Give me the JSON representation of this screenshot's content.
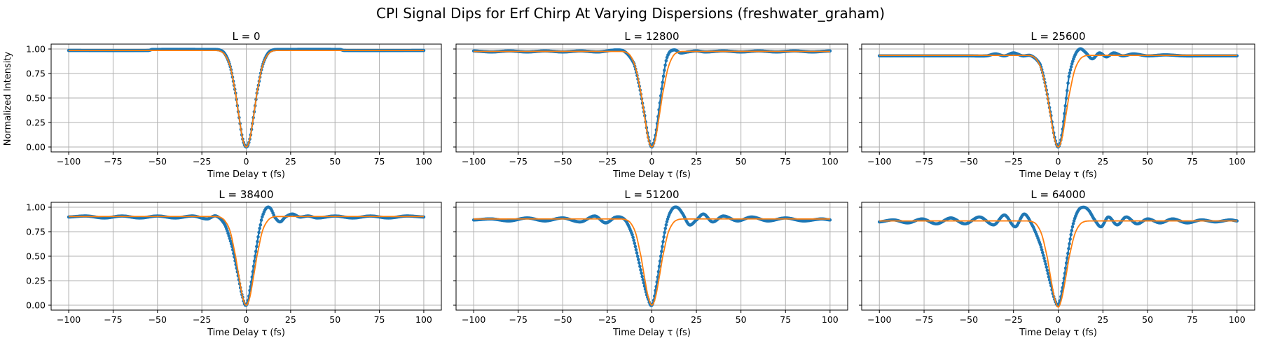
{
  "figure": {
    "title": "CPI Signal Dips for Erf Chirp At Varying Dispersions (freshwater_graham)",
    "xlabel": "Time Delay τ (fs)",
    "ylabel": "Normalized Intensity",
    "colors": {
      "data": "#1f77b4",
      "fit": "#ff7f0e"
    }
  },
  "chart_data": [
    {
      "type": "line",
      "title": "L = 0",
      "xlabel": "Time Delay τ (fs)",
      "ylabel": "Normalized Intensity",
      "xlim": [
        -100,
        100
      ],
      "ylim": [
        -0.05,
        1.05
      ],
      "xticks": [
        -100,
        -75,
        -50,
        -25,
        0,
        25,
        50,
        75,
        100
      ],
      "yticks": [
        "0.00",
        "0.25",
        "0.50",
        "0.75",
        "1.00"
      ],
      "grid": true,
      "series": [
        {
          "x": [
            -100,
            -55,
            -53,
            -20,
            -15,
            -12,
            -9,
            -6,
            -4,
            -2,
            0,
            2,
            4,
            6,
            9,
            12,
            15,
            20,
            53,
            55,
            100
          ],
          "y": [
            0.985,
            0.985,
            0.995,
            0.995,
            0.99,
            0.95,
            0.82,
            0.55,
            0.3,
            0.08,
            0.0,
            0.08,
            0.3,
            0.55,
            0.82,
            0.95,
            0.99,
            0.995,
            0.995,
            0.985,
            0.985
          ]
        },
        {
          "x": [
            -100,
            -20,
            -15,
            -12,
            -9,
            -6,
            -4,
            -2,
            0,
            2,
            4,
            6,
            9,
            12,
            15,
            20,
            100
          ],
          "y": [
            0.985,
            0.985,
            0.98,
            0.94,
            0.82,
            0.55,
            0.3,
            0.08,
            0.0,
            0.08,
            0.3,
            0.55,
            0.82,
            0.94,
            0.98,
            0.985,
            0.985
          ]
        }
      ]
    },
    {
      "type": "line",
      "title": "L = 12800",
      "xlabel": "Time Delay τ (fs)",
      "xlim": [
        -100,
        100
      ],
      "ylim": [
        -0.05,
        1.05
      ],
      "xticks": [
        -100,
        -75,
        -50,
        -25,
        0,
        25,
        50,
        75,
        100
      ],
      "yticks": [
        "0.00",
        "0.25",
        "0.50",
        "0.75",
        "1.00"
      ],
      "grid": true,
      "series": [
        {
          "x": [
            -100,
            -90,
            -80,
            -70,
            -60,
            -50,
            -40,
            -30,
            -20,
            -15,
            -10,
            -7,
            -4,
            -2,
            0,
            2,
            4,
            6,
            8,
            10,
            13,
            16,
            20,
            25,
            30,
            40,
            50,
            60,
            70,
            80,
            90,
            100
          ],
          "y": [
            0.98,
            0.97,
            0.98,
            0.97,
            0.98,
            0.97,
            0.98,
            0.97,
            0.99,
            0.97,
            0.85,
            0.62,
            0.32,
            0.1,
            0.0,
            0.12,
            0.38,
            0.66,
            0.88,
            0.97,
            0.99,
            0.96,
            0.97,
            0.98,
            0.97,
            0.98,
            0.97,
            0.98,
            0.97,
            0.98,
            0.97,
            0.98
          ]
        },
        {
          "x": [
            -100,
            -20,
            -15,
            -12,
            -9,
            -6,
            -4,
            -2,
            0,
            2,
            4,
            6,
            9,
            12,
            15,
            20,
            100
          ],
          "y": [
            0.975,
            0.975,
            0.97,
            0.93,
            0.8,
            0.54,
            0.3,
            0.08,
            0.0,
            0.08,
            0.3,
            0.54,
            0.8,
            0.93,
            0.97,
            0.975,
            0.975
          ]
        }
      ]
    },
    {
      "type": "line",
      "title": "L = 25600",
      "xlabel": "Time Delay τ (fs)",
      "xlim": [
        -100,
        100
      ],
      "ylim": [
        -0.05,
        1.05
      ],
      "xticks": [
        -100,
        -75,
        -50,
        -25,
        0,
        25,
        50,
        75,
        100
      ],
      "yticks": [
        "0.00",
        "0.25",
        "0.50",
        "0.75",
        "1.00"
      ],
      "grid": true,
      "series": [
        {
          "x": [
            -100,
            -50,
            -40,
            -35,
            -30,
            -25,
            -20,
            -15,
            -10,
            -7,
            -4,
            -2,
            0,
            2,
            4,
            6,
            9,
            12,
            15,
            19,
            23,
            27,
            31,
            36,
            42,
            50,
            60,
            70,
            80,
            90,
            100
          ],
          "y": [
            0.93,
            0.93,
            0.93,
            0.95,
            0.93,
            0.96,
            0.93,
            0.93,
            0.84,
            0.62,
            0.32,
            0.1,
            0.0,
            0.12,
            0.42,
            0.72,
            0.92,
            1.0,
            0.97,
            0.9,
            0.96,
            0.92,
            0.96,
            0.93,
            0.95,
            0.93,
            0.94,
            0.93,
            0.93,
            0.93,
            0.93
          ]
        },
        {
          "x": [
            -100,
            -20,
            -15,
            -12,
            -9,
            -6,
            -4,
            -2,
            0,
            2,
            4,
            6,
            9,
            12,
            15,
            20,
            100
          ],
          "y": [
            0.935,
            0.935,
            0.93,
            0.89,
            0.77,
            0.52,
            0.29,
            0.08,
            0.0,
            0.08,
            0.29,
            0.52,
            0.77,
            0.89,
            0.93,
            0.935,
            0.935
          ]
        }
      ]
    },
    {
      "type": "line",
      "title": "L = 38400",
      "xlabel": "Time Delay τ (fs)",
      "ylabel": "Normalized Intensity",
      "xlim": [
        -100,
        100
      ],
      "ylim": [
        -0.05,
        1.05
      ],
      "xticks": [
        -100,
        -75,
        -50,
        -25,
        0,
        25,
        50,
        75,
        100
      ],
      "yticks": [
        "0.00",
        "0.25",
        "0.50",
        "0.75",
        "1.00"
      ],
      "grid": true,
      "series": [
        {
          "x": [
            -100,
            -90,
            -80,
            -70,
            -60,
            -50,
            -40,
            -30,
            -22,
            -17,
            -12,
            -8,
            -5,
            -2,
            0,
            2,
            5,
            8,
            10,
            12,
            14,
            16,
            19,
            22,
            26,
            30,
            35,
            40,
            50,
            60,
            70,
            80,
            90,
            100
          ],
          "y": [
            0.9,
            0.91,
            0.89,
            0.91,
            0.89,
            0.91,
            0.89,
            0.91,
            0.88,
            0.91,
            0.82,
            0.6,
            0.34,
            0.08,
            0.0,
            0.15,
            0.5,
            0.82,
            0.95,
            1.0,
            0.98,
            0.9,
            0.85,
            0.9,
            0.93,
            0.9,
            0.91,
            0.89,
            0.91,
            0.89,
            0.91,
            0.89,
            0.91,
            0.9
          ]
        },
        {
          "x": [
            -100,
            -20,
            -15,
            -12,
            -9,
            -6,
            -4,
            -2,
            0,
            2,
            4,
            6,
            9,
            12,
            15,
            20,
            100
          ],
          "y": [
            0.905,
            0.905,
            0.9,
            0.86,
            0.75,
            0.5,
            0.28,
            0.08,
            0.0,
            0.08,
            0.28,
            0.5,
            0.75,
            0.86,
            0.9,
            0.905,
            0.905
          ]
        }
      ]
    },
    {
      "type": "line",
      "title": "L = 51200",
      "xlabel": "Time Delay τ (fs)",
      "xlim": [
        -100,
        100
      ],
      "ylim": [
        -0.05,
        1.05
      ],
      "xticks": [
        -100,
        -75,
        -50,
        -25,
        0,
        25,
        50,
        75,
        100
      ],
      "yticks": [
        "0.00",
        "0.25",
        "0.50",
        "0.75",
        "1.00"
      ],
      "grid": true,
      "series": [
        {
          "x": [
            -100,
            -90,
            -80,
            -70,
            -60,
            -50,
            -40,
            -32,
            -26,
            -20,
            -15,
            -11,
            -8,
            -5,
            -2,
            0,
            2,
            5,
            8,
            11,
            14,
            17,
            21,
            25,
            29,
            34,
            40,
            48,
            56,
            65,
            75,
            85,
            95,
            100
          ],
          "y": [
            0.87,
            0.88,
            0.86,
            0.89,
            0.86,
            0.89,
            0.85,
            0.91,
            0.84,
            0.9,
            0.87,
            0.72,
            0.5,
            0.26,
            0.06,
            0.0,
            0.15,
            0.5,
            0.82,
            0.97,
            1.0,
            0.94,
            0.82,
            0.87,
            0.93,
            0.85,
            0.91,
            0.86,
            0.9,
            0.86,
            0.89,
            0.86,
            0.88,
            0.87
          ]
        },
        {
          "x": [
            -100,
            -20,
            -15,
            -12,
            -9,
            -6,
            -4,
            -2,
            0,
            2,
            4,
            6,
            9,
            12,
            15,
            20,
            100
          ],
          "y": [
            0.88,
            0.88,
            0.875,
            0.84,
            0.73,
            0.49,
            0.27,
            0.08,
            0.0,
            0.08,
            0.27,
            0.49,
            0.73,
            0.84,
            0.875,
            0.88,
            0.88
          ]
        }
      ]
    },
    {
      "type": "line",
      "title": "L = 64000",
      "xlabel": "Time Delay τ (fs)",
      "xlim": [
        -100,
        100
      ],
      "ylim": [
        -0.05,
        1.05
      ],
      "xticks": [
        -100,
        -75,
        -50,
        -25,
        0,
        25,
        50,
        75,
        100
      ],
      "yticks": [
        "0.00",
        "0.25",
        "0.50",
        "0.75",
        "1.00"
      ],
      "grid": true,
      "series": [
        {
          "x": [
            -100,
            -92,
            -84,
            -76,
            -68,
            -60,
            -52,
            -44,
            -36,
            -30,
            -24,
            -19,
            -14,
            -10,
            -7,
            -4,
            -2,
            0,
            2,
            5,
            8,
            11,
            14,
            17,
            20,
            24,
            28,
            33,
            38,
            44,
            50,
            57,
            64,
            72,
            80,
            88,
            96,
            100
          ],
          "y": [
            0.85,
            0.87,
            0.84,
            0.88,
            0.83,
            0.89,
            0.83,
            0.9,
            0.82,
            0.92,
            0.8,
            0.93,
            0.8,
            0.62,
            0.42,
            0.2,
            0.06,
            0.0,
            0.14,
            0.48,
            0.8,
            0.96,
            1.0,
            0.97,
            0.88,
            0.8,
            0.9,
            0.82,
            0.9,
            0.83,
            0.88,
            0.84,
            0.88,
            0.84,
            0.87,
            0.85,
            0.87,
            0.86
          ]
        },
        {
          "x": [
            -100,
            -20,
            -15,
            -12,
            -9,
            -6,
            -4,
            -2,
            0,
            2,
            4,
            6,
            9,
            12,
            15,
            20,
            100
          ],
          "y": [
            0.86,
            0.86,
            0.855,
            0.82,
            0.71,
            0.48,
            0.26,
            0.07,
            -0.02,
            0.07,
            0.26,
            0.48,
            0.71,
            0.82,
            0.855,
            0.86,
            0.86
          ]
        }
      ]
    }
  ]
}
